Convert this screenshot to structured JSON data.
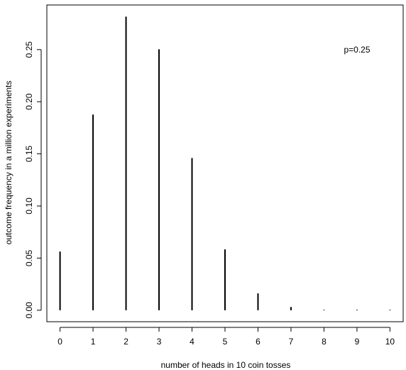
{
  "chart_data": {
    "type": "bar",
    "style": "histogram-lines",
    "x": [
      0,
      1,
      2,
      3,
      4,
      5,
      6,
      7,
      8,
      9,
      10
    ],
    "values": [
      0.0563,
      0.1877,
      0.2816,
      0.2503,
      0.146,
      0.0584,
      0.0162,
      0.0031,
      0.0004,
      0.0,
      0.0
    ],
    "xlabel": "number of heads in 10 coin tosses",
    "ylabel": "outcome frequency in a million experiments",
    "annotation": "p=0.25",
    "xlim": [
      -0.4,
      10.4
    ],
    "ylim": [
      -0.011,
      0.2928
    ],
    "xticks": [
      "0",
      "1",
      "2",
      "3",
      "4",
      "5",
      "6",
      "7",
      "8",
      "9",
      "10"
    ],
    "yticks": [
      "0.00",
      "0.05",
      "0.10",
      "0.15",
      "0.20",
      "0.25"
    ],
    "grid": false,
    "box": true,
    "line_color": "#000000"
  }
}
